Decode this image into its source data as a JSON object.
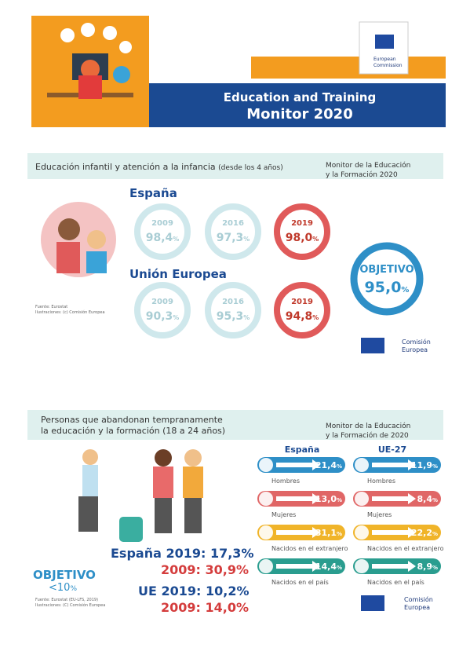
{
  "header": {
    "title_line1": "Education and Training",
    "title_line2": "Monitor 2020",
    "logo": [
      "European",
      "Commission"
    ]
  },
  "section1": {
    "title": "Educación infantil y atención a la infancia",
    "title_note": "(desde los 4 años)",
    "monitor": [
      "Monitor de la Educación",
      "y la Formación 2020"
    ],
    "groups": [
      {
        "name": "España",
        "items": [
          {
            "year": "2009",
            "value": "98,4",
            "unit": "%"
          },
          {
            "year": "2016",
            "value": "97,3",
            "unit": "%"
          },
          {
            "year": "2019",
            "value": "98,0",
            "unit": "%"
          }
        ]
      },
      {
        "name": "Unión Europea",
        "items": [
          {
            "year": "2009",
            "value": "90,3",
            "unit": "%"
          },
          {
            "year": "2016",
            "value": "95,3",
            "unit": "%"
          },
          {
            "year": "2019",
            "value": "94,8",
            "unit": "%"
          }
        ]
      }
    ],
    "target": {
      "label": "OBJETIVO",
      "value": "95,0",
      "unit": "%"
    },
    "source": [
      "Fuente: Eurostat",
      "Ilustraciones: (c) Comisión Europea"
    ],
    "logo": [
      "Comisión",
      "Europea"
    ]
  },
  "section2": {
    "title": [
      "Personas que abandonan tempranamente",
      "la educación y la formación (18 a 24 años)"
    ],
    "monitor": [
      "Monitor de la Educación",
      "y la Formación de 2020"
    ],
    "columns": [
      "España",
      "UE-27"
    ],
    "rows": [
      [
        {
          "label": "Hombres",
          "value": "21,4",
          "unit": "%"
        },
        {
          "label": "Hombres",
          "value": "11,9",
          "unit": "%"
        }
      ],
      [
        {
          "label": "Mujeres",
          "value": "13,0",
          "unit": "%"
        },
        {
          "label": "Mujeres",
          "value": "8,4",
          "unit": "%"
        }
      ],
      [
        {
          "label": "Nacidos en el extranjero",
          "value": "31,1",
          "unit": "%"
        },
        {
          "label": "Nacidos en el extranjero",
          "value": "22,2",
          "unit": "%"
        }
      ],
      [
        {
          "label": "Nacidos en el país",
          "value": "14,4",
          "unit": "%"
        },
        {
          "label": "Nacidos en el país",
          "value": "8,9",
          "unit": "%"
        }
      ]
    ],
    "summary": [
      "España 2019: 17,3%",
      "2009: 30,9%",
      "UE 2019: 10,2%",
      "2009: 14,0%"
    ],
    "target": {
      "label": "OBJETIVO",
      "value": "<10",
      "unit": "%"
    },
    "source": [
      "Fuente: Eurostat (EU-LFS, 2019)",
      "Ilustraciones: (C) Comisión Europea"
    ],
    "logo": [
      "Comisión",
      "Europea"
    ]
  }
}
